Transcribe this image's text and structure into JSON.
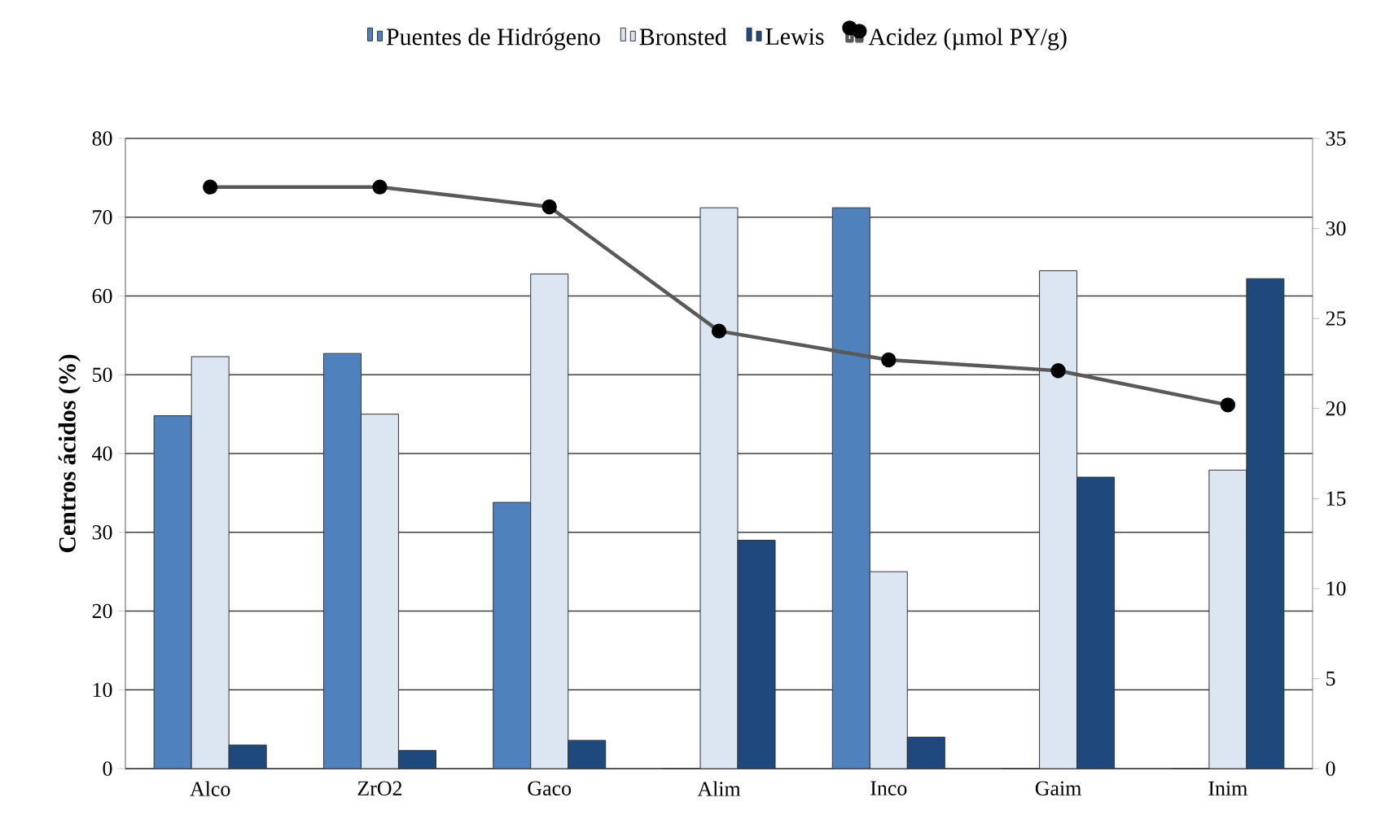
{
  "chart_data": {
    "type": "bar",
    "ylabel": "Centros ácidos (%)",
    "categories": [
      "Alco",
      "ZrO2",
      "Gaco",
      "Alim",
      "Inco",
      "Gaim",
      "Inim"
    ],
    "series": [
      {
        "name": "Puentes de Hidrógeno",
        "color": "#4f81bd",
        "values": [
          44.8,
          52.7,
          33.8,
          0,
          71.2,
          0,
          0
        ]
      },
      {
        "name": "Bronsted",
        "color": "#dce6f2",
        "values": [
          52.3,
          45,
          62.8,
          71.2,
          25,
          63.2,
          37.9
        ]
      },
      {
        "name": "Lewis",
        "color": "#1f497d",
        "values": [
          3,
          2.3,
          3.6,
          29,
          4,
          37,
          62.2
        ]
      },
      {
        "name": "Acidez (µmol PY/g)",
        "color": "#595959",
        "type": "line",
        "axis": "y2",
        "marker": "circle",
        "values": [
          32.3,
          32.3,
          31.2,
          24.3,
          22.7,
          22.1,
          20.2
        ]
      }
    ],
    "ylim": [
      0,
      80
    ],
    "yticks": [
      0,
      10,
      20,
      30,
      40,
      50,
      60,
      70,
      80
    ],
    "y2lim": [
      0,
      35
    ],
    "y2ticks": [
      0,
      5,
      10,
      15,
      20,
      25,
      30,
      35
    ],
    "grid": "y",
    "legend": "top"
  }
}
